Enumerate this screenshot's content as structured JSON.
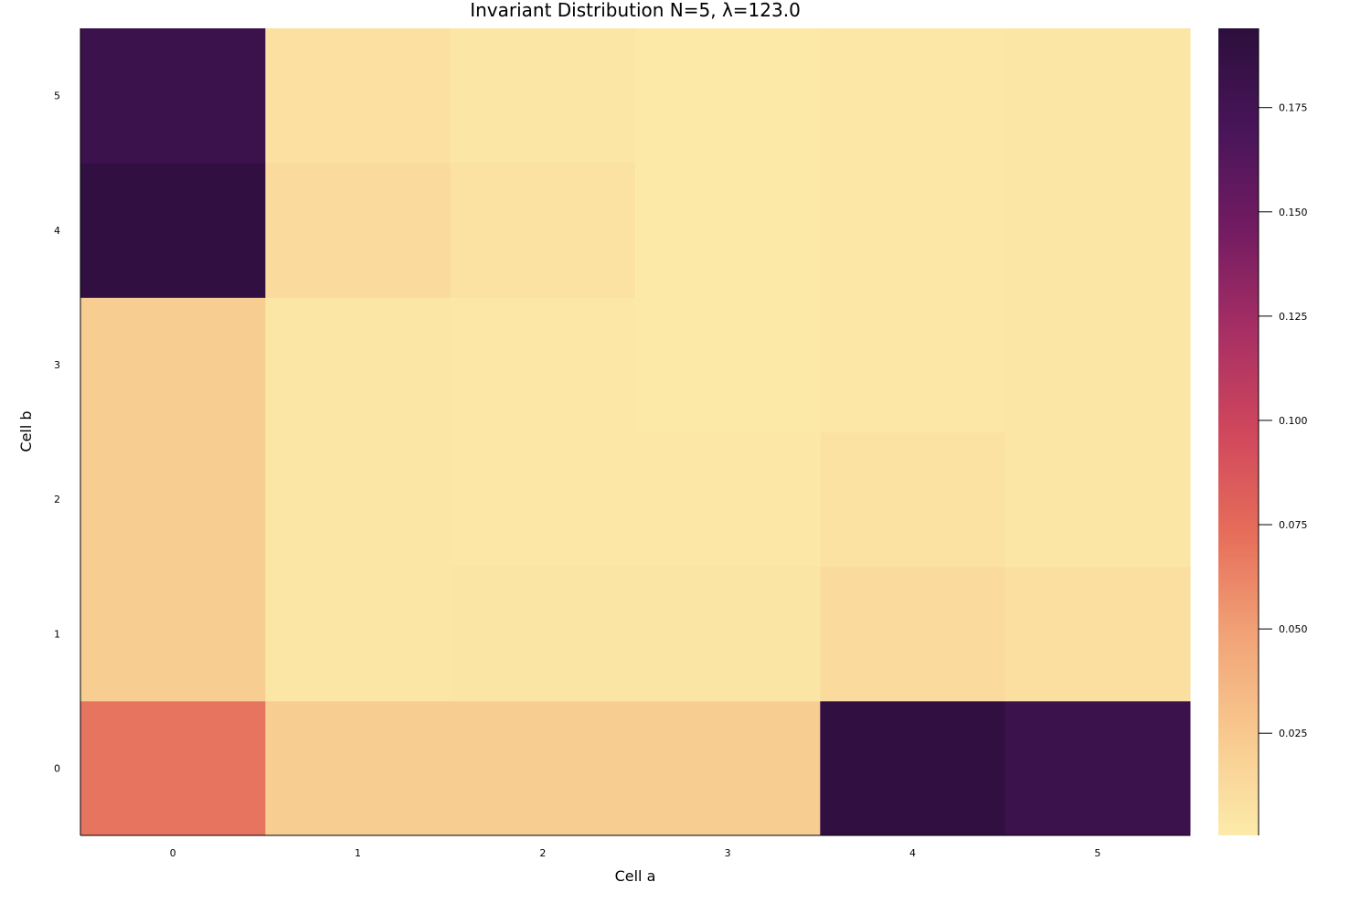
{
  "chart_data": {
    "type": "heatmap",
    "title": "Invariant Distribution N=5, λ=123.0",
    "xlabel": "Cell a",
    "ylabel": "Cell b",
    "x_categories": [
      "0",
      "1",
      "2",
      "3",
      "4",
      "5"
    ],
    "y_categories": [
      "0",
      "1",
      "2",
      "3",
      "4",
      "5"
    ],
    "values": [
      [
        0.07,
        0.022,
        0.022,
        0.022,
        0.19,
        0.18
      ],
      [
        0.022,
        0.004,
        0.005,
        0.005,
        0.012,
        0.009
      ],
      [
        0.022,
        0.004,
        0.003,
        0.003,
        0.007,
        0.004
      ],
      [
        0.022,
        0.004,
        0.003,
        0.002,
        0.003,
        0.004
      ],
      [
        0.19,
        0.012,
        0.007,
        0.002,
        0.003,
        0.004
      ],
      [
        0.18,
        0.008,
        0.004,
        0.002,
        0.003,
        0.004
      ]
    ],
    "colorbar": {
      "min": 0.0005,
      "max": 0.194,
      "ticks": [
        0.025,
        0.05,
        0.075,
        0.1,
        0.125,
        0.15,
        0.175
      ],
      "tick_labels": [
        "0.025",
        "0.050",
        "0.075",
        "0.100",
        "0.125",
        "0.150",
        "0.175"
      ],
      "colormap": "magma (reversed)",
      "colors": [
        "#fcebaa",
        "#f8c98f",
        "#f1a276",
        "#e66d5a",
        "#d0475c",
        "#a72f64",
        "#731b62",
        "#481559",
        "#2c0f3c"
      ]
    },
    "grid": false,
    "legend": "colorbar-right"
  }
}
